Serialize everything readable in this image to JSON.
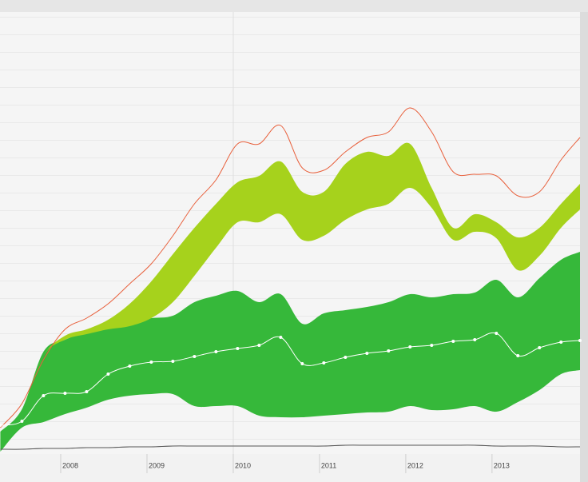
{
  "chart_data": {
    "type": "area",
    "x": [
      2007.3,
      2007.55,
      2007.8,
      2008.05,
      2008.3,
      2008.55,
      2008.8,
      2009.05,
      2009.3,
      2009.55,
      2009.8,
      2010.05,
      2010.3,
      2010.55,
      2010.8,
      2011.05,
      2011.3,
      2011.55,
      2011.8,
      2012.05,
      2012.3,
      2012.55,
      2012.8,
      2013.05,
      2013.3,
      2013.55,
      2013.8,
      2014.02
    ],
    "xlim": [
      2007.296,
      2014.02
    ],
    "xticks": [
      2008,
      2009,
      2010,
      2011,
      2012,
      2013
    ],
    "ylim": [
      0,
      553
    ],
    "bands": [
      {
        "color": "#36b83a",
        "high": [
          28,
          56,
          128,
          143,
          153,
          163,
          166,
          170,
          173,
          190,
          198,
          204,
          190,
          200,
          163,
          176,
          180,
          184,
          190,
          200,
          196,
          200,
          202,
          218,
          196,
          220,
          243,
          253
        ],
        "low": [
          3,
          33,
          40,
          50,
          58,
          68,
          73,
          75,
          75,
          60,
          60,
          60,
          48,
          46,
          46,
          48,
          50,
          52,
          53,
          60,
          55,
          56,
          60,
          53,
          65,
          80,
          100,
          105
        ]
      },
      {
        "color": "#a6d21c",
        "high": [
          28,
          58,
          123,
          148,
          156,
          168,
          188,
          216,
          250,
          283,
          313,
          340,
          348,
          366,
          328,
          328,
          363,
          378,
          373,
          388,
          333,
          283,
          300,
          290,
          271,
          283,
          313,
          338
        ],
        "low": [
          28,
          58,
          123,
          143,
          150,
          156,
          160,
          170,
          190,
          223,
          258,
          290,
          290,
          300,
          268,
          273,
          293,
          306,
          313,
          333,
          308,
          268,
          278,
          270,
          230,
          248,
          283,
          306
        ]
      }
    ],
    "series": [
      {
        "color": "#e8603c",
        "values": [
          33,
          63,
          118,
          156,
          170,
          188,
          213,
          238,
          273,
          313,
          343,
          388,
          388,
          411,
          358,
          355,
          378,
          396,
          403,
          433,
          403,
          353,
          350,
          348,
          323,
          328,
          368,
          396
        ]
      },
      {
        "color": "#ffffff",
        "markers": true,
        "values": [
          36,
          41,
          73,
          76,
          78,
          100,
          110,
          115,
          116,
          122,
          128,
          132,
          136,
          146,
          113,
          114,
          121,
          126,
          129,
          134,
          136,
          141,
          143,
          151,
          123,
          133,
          140,
          142
        ]
      },
      {
        "color": "#555555",
        "values": [
          6,
          6,
          7,
          7,
          8,
          8,
          9,
          9,
          10,
          10,
          10,
          10,
          10,
          10,
          10,
          10,
          11,
          11,
          11,
          11,
          11,
          11,
          11,
          10,
          10,
          10,
          9,
          9
        ]
      }
    ]
  }
}
